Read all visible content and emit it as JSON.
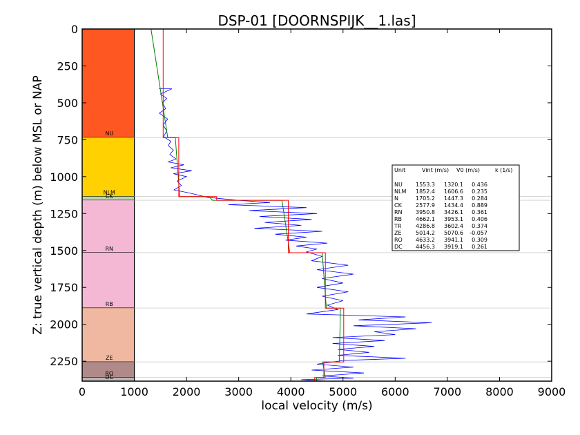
{
  "chart_data": {
    "type": "line",
    "title": "DSP-01 [DOORNSPIJK__1.las]",
    "xlabel": "local velocity (m/s)",
    "ylabel": "Z: true vertical depth (m) below MSL or NAP",
    "xlim": [
      0,
      9000
    ],
    "ylim": [
      2385,
      0
    ],
    "x_ticks": [
      0,
      1000,
      2000,
      3000,
      4000,
      5000,
      6000,
      7000,
      8000,
      9000
    ],
    "y_ticks": [
      0,
      250,
      500,
      750,
      1000,
      1250,
      1500,
      1750,
      2000,
      2250
    ],
    "units": [
      {
        "name": "NU",
        "top": 0,
        "base": 735,
        "color": "#FF5722"
      },
      {
        "name": "NLM",
        "top": 735,
        "base": 1135,
        "color": "#FFD100"
      },
      {
        "name": "CK",
        "top": 1135,
        "base": 1160,
        "color": "#B7D9A8"
      },
      {
        "name": "RN",
        "top": 1160,
        "base": 1515,
        "color": "#F4B8D4"
      },
      {
        "name": "RB",
        "top": 1515,
        "base": 1890,
        "color": "#F4B8D4"
      },
      {
        "name": "ZE",
        "top": 1890,
        "base": 2255,
        "color": "#F0B8A0"
      },
      {
        "name": "RO",
        "top": 2255,
        "base": 2360,
        "color": "#B08A88"
      },
      {
        "name": "DC",
        "top": 2360,
        "base": 2385,
        "color": "#B8B8B8"
      }
    ],
    "table": {
      "headers": [
        "Unit",
        "Vint (m/s)",
        "V0 (m/s)",
        "k (1/s)"
      ],
      "rows": [
        [
          "NU",
          "1553.3",
          "1320.1",
          "0.436"
        ],
        [
          "NLM",
          "1852.4",
          "1606.6",
          "0.235"
        ],
        [
          "N",
          "1705.2",
          "1447.3",
          "0.284"
        ],
        [
          "CK",
          "2577.9",
          "1434.4",
          "0.889"
        ],
        [
          "RN",
          "3950.8",
          "3426.1",
          "0.361"
        ],
        [
          "RB",
          "4662.1",
          "3953.1",
          "0.406"
        ],
        [
          "TR",
          "4286.8",
          "3602.4",
          "0.374"
        ],
        [
          "ZE",
          "5014.2",
          "5070.6",
          "-0.057"
        ],
        [
          "RO",
          "4633.2",
          "3941.1",
          "0.309"
        ],
        [
          "DC",
          "4456.3",
          "3919.1",
          "0.261"
        ]
      ]
    },
    "interval_velocity": [
      [
        1553,
        0
      ],
      [
        1553,
        735
      ],
      [
        1852,
        735
      ],
      [
        1852,
        1135
      ],
      [
        2578,
        1135
      ],
      [
        2578,
        1160
      ],
      [
        3951,
        1160
      ],
      [
        3951,
        1515
      ],
      [
        4662,
        1515
      ],
      [
        4662,
        1890
      ],
      [
        5014,
        1890
      ],
      [
        5014,
        2255
      ],
      [
        4633,
        2255
      ],
      [
        4633,
        2360
      ],
      [
        4456,
        2360
      ],
      [
        4456,
        2385
      ]
    ],
    "linear_velocity": [
      [
        1320,
        0
      ],
      [
        1540,
        505
      ],
      [
        1640,
        735
      ],
      [
        1785,
        735
      ],
      [
        1870,
        1135
      ],
      [
        2430,
        1135
      ],
      [
        2500,
        1160
      ],
      [
        3830,
        1160
      ],
      [
        3980,
        1515
      ],
      [
        4600,
        1515
      ],
      [
        4680,
        1890
      ],
      [
        4950,
        1890
      ],
      [
        4930,
        2255
      ],
      [
        4610,
        2255
      ],
      [
        4660,
        2360
      ],
      [
        4490,
        2360
      ],
      [
        4500,
        2385
      ]
    ],
    "sonic_velocity": [
      [
        1470,
        405
      ],
      [
        1720,
        405
      ],
      [
        1500,
        440
      ],
      [
        1620,
        470
      ],
      [
        1540,
        500
      ],
      [
        1600,
        540
      ],
      [
        1480,
        570
      ],
      [
        1640,
        610
      ],
      [
        1550,
        650
      ],
      [
        1620,
        690
      ],
      [
        1560,
        730
      ],
      [
        1700,
        760
      ],
      [
        1650,
        790
      ],
      [
        1750,
        820
      ],
      [
        1680,
        850
      ],
      [
        1800,
        880
      ],
      [
        1650,
        900
      ],
      [
        1950,
        920
      ],
      [
        1700,
        940
      ],
      [
        2100,
        960
      ],
      [
        1750,
        980
      ],
      [
        2000,
        1000
      ],
      [
        1820,
        1030
      ],
      [
        1900,
        1060
      ],
      [
        1760,
        1090
      ],
      [
        2050,
        1110
      ],
      [
        2400,
        1140
      ],
      [
        3000,
        1160
      ],
      [
        3600,
        1175
      ],
      [
        2800,
        1190
      ],
      [
        4300,
        1210
      ],
      [
        3200,
        1230
      ],
      [
        4500,
        1250
      ],
      [
        3400,
        1270
      ],
      [
        4400,
        1290
      ],
      [
        3500,
        1310
      ],
      [
        4200,
        1330
      ],
      [
        3300,
        1350
      ],
      [
        4600,
        1370
      ],
      [
        3700,
        1390
      ],
      [
        4300,
        1410
      ],
      [
        3900,
        1430
      ],
      [
        4700,
        1450
      ],
      [
        4100,
        1470
      ],
      [
        4500,
        1490
      ],
      [
        4300,
        1510
      ],
      [
        4600,
        1540
      ],
      [
        4400,
        1570
      ],
      [
        5100,
        1600
      ],
      [
        4500,
        1630
      ],
      [
        5200,
        1660
      ],
      [
        4600,
        1690
      ],
      [
        5000,
        1720
      ],
      [
        4500,
        1750
      ],
      [
        5100,
        1780
      ],
      [
        4600,
        1810
      ],
      [
        5000,
        1840
      ],
      [
        4700,
        1870
      ],
      [
        4900,
        1900
      ],
      [
        4300,
        1930
      ],
      [
        6200,
        1950
      ],
      [
        5300,
        1970
      ],
      [
        6700,
        1990
      ],
      [
        5200,
        2010
      ],
      [
        6400,
        2030
      ],
      [
        5600,
        2050
      ],
      [
        6000,
        2070
      ],
      [
        4800,
        2090
      ],
      [
        5800,
        2110
      ],
      [
        4800,
        2130
      ],
      [
        5600,
        2150
      ],
      [
        4900,
        2170
      ],
      [
        5500,
        2190
      ],
      [
        4900,
        2210
      ],
      [
        6200,
        2230
      ],
      [
        5000,
        2245
      ],
      [
        4500,
        2270
      ],
      [
        5200,
        2290
      ],
      [
        4400,
        2310
      ],
      [
        5400,
        2330
      ],
      [
        4600,
        2350
      ],
      [
        5200,
        2365
      ],
      [
        4200,
        2375
      ],
      [
        4700,
        2385
      ]
    ]
  }
}
